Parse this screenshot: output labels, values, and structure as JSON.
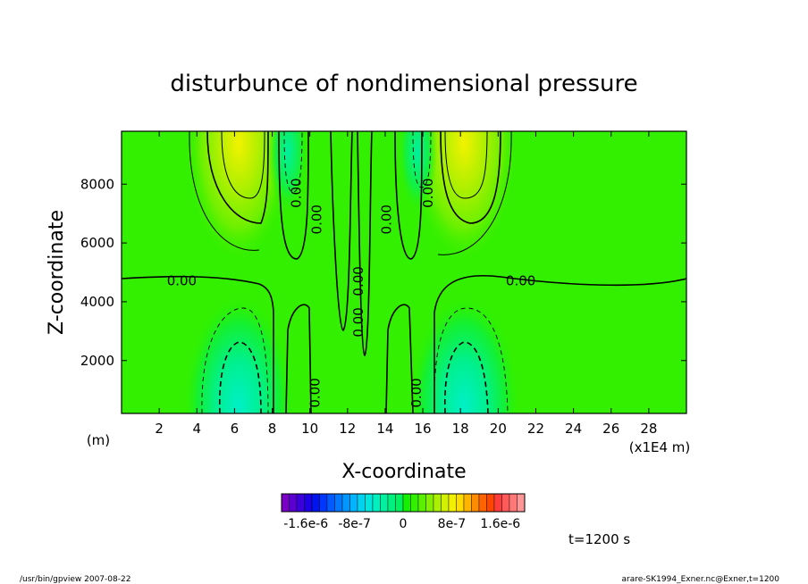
{
  "chart_data": {
    "type": "contour",
    "title": "disturbunce of nondimensional pressure",
    "xlabel": "X-coordinate",
    "ylabel": "Z-coordinate",
    "x_unit_left": "(m)",
    "x_unit_right": "(x1E4 m)",
    "xlim": [
      0,
      30
    ],
    "ylim": [
      200,
      9800
    ],
    "xticks": [
      "2",
      "4",
      "6",
      "8",
      "10",
      "12",
      "14",
      "16",
      "18",
      "20",
      "22",
      "24",
      "26",
      "28"
    ],
    "yticks": [
      "2000",
      "4000",
      "6000",
      "8000"
    ],
    "contour_labels": [
      "0.00",
      "0.00",
      "0.00",
      "0.00",
      "0.00",
      "0.00",
      "0.00",
      "0.00",
      "0.00",
      "0.00",
      "0.00"
    ],
    "features": [
      {
        "kind": "max",
        "x": 6.3,
        "z": 9300,
        "value": 1e-06
      },
      {
        "kind": "max",
        "x": 18.0,
        "z": 9300,
        "value": 1e-06
      },
      {
        "kind": "min",
        "x": 6.3,
        "z": 800,
        "value": -6e-07
      },
      {
        "kind": "min",
        "x": 18.0,
        "z": 800,
        "value": -6e-07
      },
      {
        "kind": "min",
        "x": 9.0,
        "z": 9300,
        "value": -4e-07
      },
      {
        "kind": "min",
        "x": 15.5,
        "z": 9300,
        "value": -4e-07
      }
    ],
    "colorbar": {
      "ticks": [
        "-1.6e-6",
        "-8e-7",
        "0",
        "8e-7",
        "1.6e-6"
      ],
      "range": [
        -2e-06,
        2e-06
      ],
      "colors": [
        "#7a00c8",
        "#5a00d0",
        "#3c00dc",
        "#1e00e6",
        "#0014f0",
        "#0037ff",
        "#005aff",
        "#0078ff",
        "#0096ff",
        "#00b4ff",
        "#00d2f0",
        "#00e6dc",
        "#00f0c0",
        "#00f0a0",
        "#00f080",
        "#00f060",
        "#14f000",
        "#32f000",
        "#5af000",
        "#82f000",
        "#aaf000",
        "#d2f000",
        "#f0f000",
        "#ffdc00",
        "#ffb400",
        "#ff8c00",
        "#ff6400",
        "#ff4600",
        "#ff3c3c",
        "#ff5a5a",
        "#ff7878",
        "#ff9696"
      ]
    },
    "grid": false
  },
  "time_label": "t=1200 s",
  "footer": {
    "left": "/usr/bin/gpview   2007-08-22",
    "right": "arare-SK1994_Exner.nc@Exner,t=1200"
  }
}
